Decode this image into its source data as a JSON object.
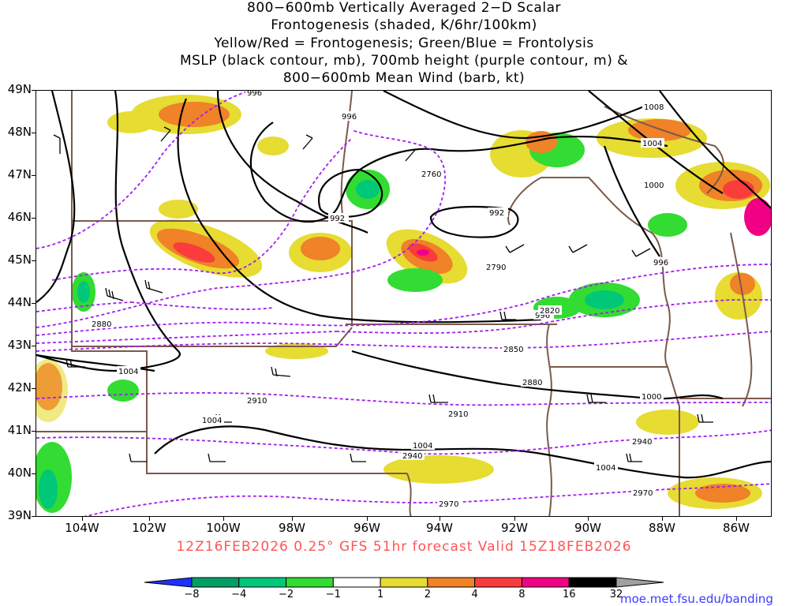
{
  "title": {
    "line1": "800−600mb Vertically Averaged 2−D Scalar",
    "line2": "Frontogenesis (shaded, K/6hr/100km)",
    "line3": "Yellow/Red = Frontogenesis;  Green/Blue = Frontolysis",
    "line4": "MSLP (black contour, mb), 700mb height (purple contour, m) &",
    "line5": "800−600mb Mean Wind (barb, kt)"
  },
  "axes": {
    "lat_labels": [
      "49N",
      "48N",
      "47N",
      "46N",
      "45N",
      "44N",
      "43N",
      "42N",
      "41N",
      "40N",
      "39N"
    ],
    "lon_labels": [
      "104W",
      "102W",
      "100W",
      "98W",
      "96W",
      "94W",
      "92W",
      "90W",
      "88W",
      "86W"
    ]
  },
  "contours": {
    "mslp_labels": [
      "996",
      "992",
      "992",
      "996",
      "1008",
      "1004",
      "1000",
      "996",
      "996",
      "1004",
      "1004",
      "1004",
      "1000",
      "1004"
    ],
    "height_labels": [
      "2760",
      "2790",
      "2820",
      "2850",
      "2880",
      "2880",
      "2910",
      "2910",
      "2940",
      "2940",
      "2970",
      "2970"
    ]
  },
  "valid_text": "12Z16FEB2026 0.25° GFS 51hr forecast Valid 15Z18FEB2026",
  "colorbar": {
    "labels": [
      "−8",
      "−4",
      "−2",
      "−1",
      "1",
      "2",
      "4",
      "8",
      "16",
      "32"
    ],
    "colors": [
      "#1e32ff",
      "#00a064",
      "#00c878",
      "#32dc32",
      "#ffffff",
      "#e6dc32",
      "#f08228",
      "#fa3c3c",
      "#f00082",
      "#000000",
      "#a0a0a0"
    ]
  },
  "credit": "moe.met.fsu.edu/banding"
}
